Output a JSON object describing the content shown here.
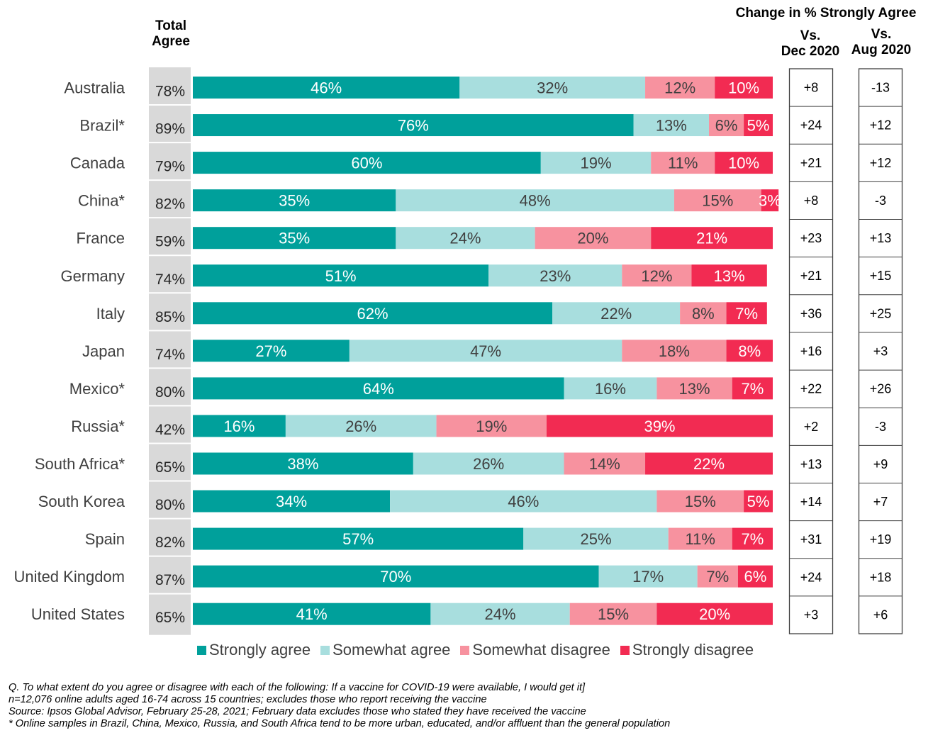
{
  "headers": {
    "total_line1": "Total",
    "total_line2": "Agree",
    "change_title": "Change in % Strongly Agree",
    "dec_line1": "Vs.",
    "dec_line2": "Dec 2020",
    "aug_line1": "Vs.",
    "aug_line2": "Aug 2020"
  },
  "colors": {
    "strongly_agree": "#00A09B",
    "somewhat_agree": "#A8DEDE",
    "somewhat_disagree": "#F7929F",
    "strongly_disagree": "#F22B52",
    "total_bg": "#D9D9D9"
  },
  "chart_data": {
    "type": "bar",
    "orientation": "horizontal",
    "stacked": true,
    "categories": [
      "Australia",
      "Brazil*",
      "Canada",
      "China*",
      "France",
      "Germany",
      "Italy",
      "Japan",
      "Mexico*",
      "Russia*",
      "South Africa*",
      "South Korea",
      "Spain",
      "United Kingdom",
      "United States"
    ],
    "series": [
      {
        "name": "Strongly agree",
        "values": [
          46,
          76,
          60,
          35,
          35,
          51,
          62,
          27,
          64,
          16,
          38,
          34,
          57,
          70,
          41
        ]
      },
      {
        "name": "Somewhat agree",
        "values": [
          32,
          13,
          19,
          48,
          24,
          23,
          22,
          47,
          16,
          26,
          26,
          46,
          25,
          17,
          24
        ]
      },
      {
        "name": "Somewhat disagree",
        "values": [
          12,
          6,
          11,
          15,
          20,
          12,
          8,
          18,
          13,
          19,
          14,
          15,
          11,
          7,
          15
        ]
      },
      {
        "name": "Strongly disagree",
        "values": [
          10,
          5,
          10,
          3,
          21,
          13,
          7,
          8,
          7,
          39,
          22,
          5,
          7,
          6,
          20
        ]
      }
    ],
    "total_agree": [
      "78%",
      "89%",
      "79%",
      "82%",
      "59%",
      "74%",
      "85%",
      "74%",
      "80%",
      "42%",
      "65%",
      "80%",
      "82%",
      "87%",
      "65%"
    ],
    "change_vs_dec_2020": [
      "+8",
      "+24",
      "+21",
      "+8",
      "+23",
      "+21",
      "+36",
      "+16",
      "+22",
      "+2",
      "+13",
      "+14",
      "+31",
      "+24",
      "+3"
    ],
    "change_vs_aug_2020": [
      "-13",
      "+12",
      "+12",
      "-3",
      "+13",
      "+15",
      "+25",
      "+3",
      "+26",
      "-3",
      "+9",
      "+7",
      "+19",
      "+18",
      "+6"
    ],
    "value_suffix": "%",
    "legend_position": "bottom"
  },
  "notes": [
    "Q. To what extent do you agree or disagree with each of the following: If a vaccine for COVID-19 were available, I would get it]",
    "n=12,076 online adults aged 16-74 across 15 countries; excludes those who report receiving the vaccine",
    "Source: Ipsos Global Advisor, February 25-28, 2021; February data excludes those who stated they have received the vaccine",
    "* Online samples in Brazil, China, Mexico, Russia, and South Africa tend to be more urban, educated, and/or affluent than the general population"
  ]
}
